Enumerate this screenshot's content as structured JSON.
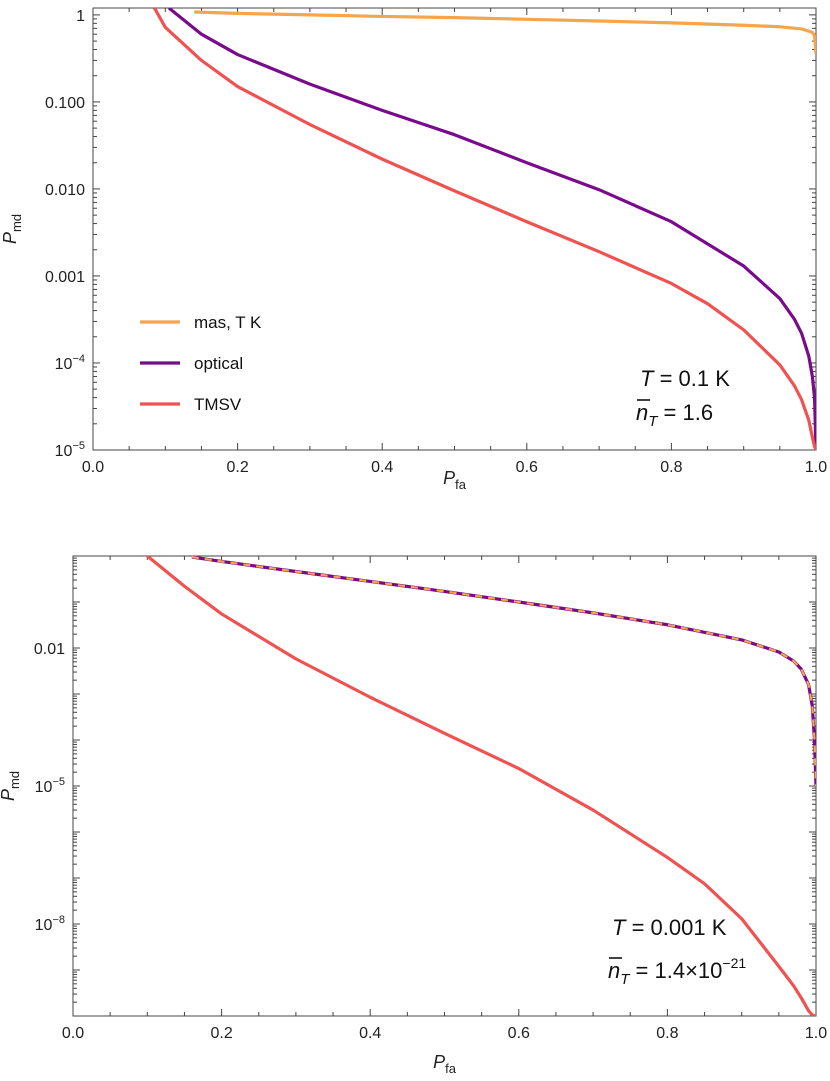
{
  "chart_data": [
    {
      "type": "line",
      "xlabel": "P",
      "xlabel_sub": "fa",
      "ylabel": "P",
      "ylabel_sub": "md",
      "y_scale": "log",
      "xlim": [
        0,
        1
      ],
      "ylim": [
        1e-05,
        1.2
      ],
      "x_ticks": [
        0,
        0.2,
        0.4,
        0.6,
        0.8,
        1.0
      ],
      "x_tick_labels": [
        "0.0",
        "0.2",
        "0.4",
        "0.6",
        "0.8",
        "1.0"
      ],
      "y_ticks": [
        {
          "value": 1,
          "base": "1",
          "exp": ""
        },
        {
          "value": 0.1,
          "base": "0.100",
          "exp": ""
        },
        {
          "value": 0.01,
          "base": "0.010",
          "exp": ""
        },
        {
          "value": 0.001,
          "base": "0.001",
          "exp": ""
        },
        {
          "value": 0.0001,
          "base": "10",
          "exp": "−4"
        },
        {
          "value": 1e-05,
          "base": "10",
          "exp": "−5"
        }
      ],
      "legend_position": "bottom-left",
      "annotation": {
        "line1_var": "T",
        "line1_rest": " = 0.1 K",
        "line2_var": "n",
        "line2_sub": "T",
        "line2_rest": "  =  1.6",
        "line2_exp": ""
      },
      "series": [
        {
          "name": "mas, T K",
          "color": "#f5a54a",
          "dashed": false,
          "x": [
            0.14,
            0.2,
            0.3,
            0.4,
            0.5,
            0.6,
            0.7,
            0.8,
            0.9,
            0.95,
            0.98,
            0.995,
            0.998,
            1.0
          ],
          "y": [
            1.08,
            1.04,
            1.0,
            0.96,
            0.93,
            0.89,
            0.85,
            0.81,
            0.76,
            0.73,
            0.69,
            0.63,
            0.58,
            0.36
          ]
        },
        {
          "name": "optical",
          "color": "#7a0a8c",
          "dashed": false,
          "x": [
            0.105,
            0.15,
            0.2,
            0.3,
            0.4,
            0.5,
            0.6,
            0.7,
            0.8,
            0.9,
            0.95,
            0.97,
            0.98,
            0.99,
            0.995,
            0.998,
            1.0
          ],
          "y": [
            1.2,
            0.6,
            0.35,
            0.16,
            0.08,
            0.042,
            0.02,
            0.0098,
            0.0042,
            0.0013,
            0.00055,
            0.00032,
            0.00022,
            0.00012,
            7e-05,
            4e-05,
            1e-05
          ]
        },
        {
          "name": "TMSV",
          "color": "#f05252",
          "dashed": false,
          "x": [
            0.085,
            0.1,
            0.15,
            0.2,
            0.3,
            0.4,
            0.5,
            0.6,
            0.7,
            0.8,
            0.85,
            0.9,
            0.95,
            0.97,
            0.98,
            0.99,
            0.995,
            0.998,
            1.0
          ],
          "y": [
            1.2,
            0.72,
            0.3,
            0.15,
            0.055,
            0.022,
            0.0095,
            0.0042,
            0.0019,
            0.00082,
            0.00048,
            0.00024,
            9.5e-05,
            5.5e-05,
            3.8e-05,
            2.2e-05,
            1.4e-05,
            1.1e-05,
            1e-05
          ]
        }
      ]
    },
    {
      "type": "line",
      "xlabel": "P",
      "xlabel_sub": "fa",
      "ylabel": "P",
      "ylabel_sub": "md",
      "y_scale": "log",
      "xlim": [
        0,
        1
      ],
      "ylim": [
        1e-10,
        1
      ],
      "x_ticks": [
        0,
        0.2,
        0.4,
        0.6,
        0.8,
        1.0
      ],
      "x_tick_labels": [
        "0.0",
        "0.2",
        "0.4",
        "0.6",
        "0.8",
        "1.0"
      ],
      "y_ticks": [
        {
          "value": 0.01,
          "base": "0.01",
          "exp": ""
        },
        {
          "value": 1e-05,
          "base": "10",
          "exp": "−5"
        },
        {
          "value": 1e-08,
          "base": "10",
          "exp": "−8"
        }
      ],
      "annotation": {
        "line1_var": "T",
        "line1_rest": " = 0.001 K",
        "line2_var": "n",
        "line2_sub": "T",
        "line2_rest": "  =  1.4×10",
        "line2_exp": "−21"
      },
      "series": [
        {
          "name": "",
          "color": "#7a0a8c",
          "dashed": false,
          "x": [
            0.16,
            0.2,
            0.3,
            0.4,
            0.5,
            0.6,
            0.7,
            0.8,
            0.9,
            0.95,
            0.97,
            0.98,
            0.99,
            0.995,
            0.998,
            1.0
          ],
          "y": [
            0.95,
            0.76,
            0.46,
            0.28,
            0.17,
            0.1,
            0.058,
            0.032,
            0.015,
            0.0082,
            0.0052,
            0.0035,
            0.0016,
            0.00055,
            0.0001,
            1e-05
          ]
        },
        {
          "name": "",
          "color": "#f5a54a",
          "dashed": true,
          "x": [
            0.16,
            0.2,
            0.3,
            0.4,
            0.5,
            0.6,
            0.7,
            0.8,
            0.9,
            0.95,
            0.97,
            0.98,
            0.99,
            0.995,
            0.998,
            1.0
          ],
          "y": [
            0.95,
            0.76,
            0.46,
            0.28,
            0.17,
            0.1,
            0.058,
            0.032,
            0.015,
            0.0082,
            0.0052,
            0.0035,
            0.0016,
            0.00055,
            0.0001,
            1e-05
          ]
        },
        {
          "name": "",
          "color": "#f05252",
          "dashed": false,
          "x": [
            0.1,
            0.15,
            0.2,
            0.3,
            0.4,
            0.5,
            0.6,
            0.7,
            0.8,
            0.85,
            0.9,
            0.95,
            0.97,
            0.98,
            0.99,
            0.995,
            0.998,
            1.0
          ],
          "y": [
            1.0,
            0.22,
            0.055,
            0.0058,
            0.00085,
            0.00014,
            2.4e-05,
            3e-06,
            2.8e-07,
            7.5e-08,
            1.3e-08,
            1.2e-09,
            4.5e-10,
            2.5e-10,
            1.3e-10,
            1.05e-10,
            1e-10,
            1e-10
          ]
        }
      ]
    }
  ]
}
